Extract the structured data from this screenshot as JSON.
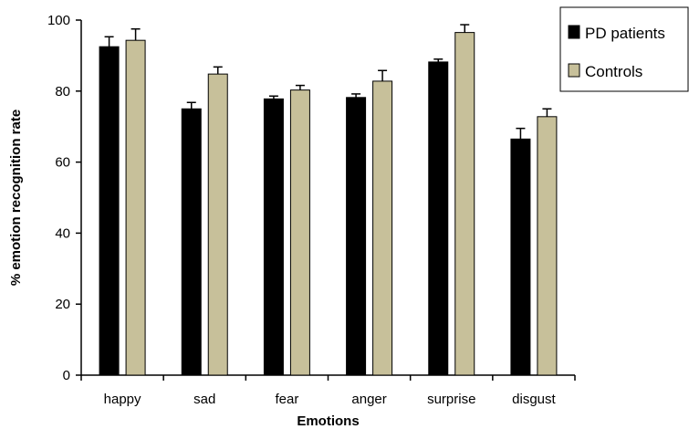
{
  "chart_data": {
    "type": "bar",
    "categories": [
      "happy",
      "sad",
      "fear",
      "anger",
      "surprise",
      "disgust"
    ],
    "series": [
      {
        "name": "PD patients",
        "color": "#000000",
        "values": [
          92.5,
          75.0,
          77.8,
          78.2,
          88.2,
          66.5
        ],
        "error": [
          2.8,
          1.8,
          0.8,
          1.0,
          0.8,
          3.0
        ]
      },
      {
        "name": "Controls",
        "color": "#c7c09a",
        "values": [
          94.3,
          84.8,
          80.3,
          82.8,
          96.5,
          72.8
        ],
        "error": [
          3.2,
          2.0,
          1.3,
          3.0,
          2.2,
          2.2
        ]
      }
    ],
    "xlabel": "Emotions",
    "ylabel": "% emotion recognition rate",
    "ylim": [
      0,
      100
    ],
    "yticks": [
      "0",
      "20",
      "40",
      "60",
      "80",
      "100"
    ],
    "grid": false,
    "legend_position": "top-right"
  }
}
